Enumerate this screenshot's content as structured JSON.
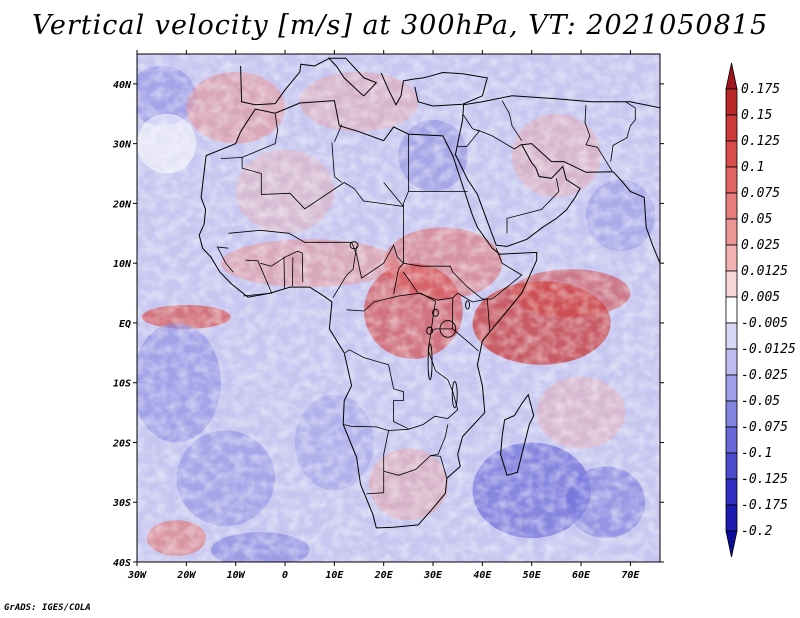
{
  "title": "Vertical velocity [m/s] at 300hPa, VT: 2021050815",
  "footer": "GrADS: IGES/COLA",
  "map": {
    "variable": "Vertical velocity",
    "units": "m/s",
    "level": "300hPa",
    "valid_time": "2021050815",
    "lon_range": [
      -30,
      76
    ],
    "lat_range": [
      -40,
      45
    ],
    "lon_ticks": [
      "30W",
      "20W",
      "10W",
      "0",
      "10E",
      "20E",
      "30E",
      "40E",
      "50E",
      "60E",
      "70E"
    ],
    "lat_ticks": [
      "40N",
      "30N",
      "20N",
      "10N",
      "EQ",
      "10S",
      "20S",
      "30S",
      "40S"
    ]
  },
  "colorbar": {
    "labels": [
      "0.175",
      "0.15",
      "0.125",
      "0.1",
      "0.075",
      "0.05",
      "0.025",
      "0.0125",
      "0.005",
      "-0.005",
      "-0.0125",
      "-0.025",
      "-0.05",
      "-0.075",
      "-0.1",
      "-0.125",
      "-0.175",
      "-0.2"
    ],
    "colors": [
      "#a0141e",
      "#b82828",
      "#cc3a3a",
      "#d94c4c",
      "#e06464",
      "#e67c7c",
      "#ec9696",
      "#f2b2b2",
      "#f8d6d6",
      "#ffffff",
      "#d8d8f6",
      "#bcbcf0",
      "#a0a0ea",
      "#8484e2",
      "#6868da",
      "#4c4cd0",
      "#3030c2",
      "#1c1cb0",
      "#0c0c9c"
    ]
  },
  "colors": {
    "red_max": "#b82828",
    "blue_max": "#1c1cb0",
    "background": "#ffffff",
    "coastline": "#000000"
  }
}
